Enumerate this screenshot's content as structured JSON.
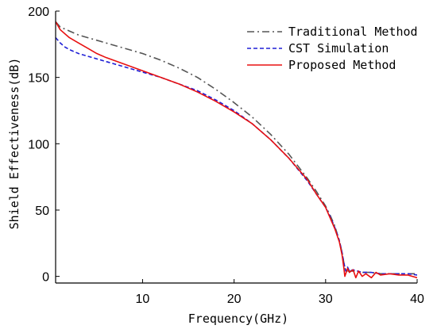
{
  "chart_data": {
    "type": "line",
    "title": "",
    "xlabel": "Frequency(GHz)",
    "ylabel": "Shield Effectiveness(dB)",
    "xlim": [
      0.5,
      40
    ],
    "ylim": [
      -5,
      200
    ],
    "xticks": [
      10,
      20,
      30,
      40
    ],
    "yticks": [
      0,
      50,
      100,
      150,
      200
    ],
    "grid": false,
    "legend_position": "top-right",
    "series": [
      {
        "name": "Traditional Method",
        "color": "#555555",
        "dash": "dashdot",
        "x": [
          0.5,
          1,
          2,
          3,
          4,
          5,
          6,
          8,
          10,
          12,
          14,
          16,
          18,
          20,
          22,
          24,
          26,
          28,
          29,
          30,
          30.5,
          31,
          31.5,
          31.8,
          32,
          32.2,
          32.5,
          33,
          34,
          35,
          36,
          37,
          38,
          39,
          40
        ],
        "values": [
          192,
          188,
          185,
          182,
          180,
          178,
          176,
          172,
          168,
          163,
          157,
          150,
          141,
          131,
          120,
          107,
          92,
          74,
          64,
          53,
          46,
          38,
          27,
          18,
          10,
          4,
          4,
          4,
          3,
          3,
          2,
          2,
          2,
          2,
          2
        ]
      },
      {
        "name": "CST Simulation",
        "color": "#1f1fd6",
        "dash": "dashed",
        "x": [
          0.5,
          1,
          1.5,
          2,
          3,
          4,
          5,
          6,
          8,
          10,
          12,
          14,
          16,
          18,
          20,
          22,
          24,
          26,
          28,
          29,
          30,
          30.5,
          31,
          31.5,
          31.8,
          32,
          32.2,
          32.4,
          32.6,
          33,
          34,
          35,
          36,
          37,
          38,
          39,
          40
        ],
        "values": [
          180,
          176,
          173,
          171,
          168,
          166,
          164,
          162,
          158,
          154,
          150,
          145,
          140,
          133,
          125,
          115,
          103,
          89,
          72,
          62,
          52,
          45,
          37,
          27,
          18,
          10,
          4,
          7,
          4,
          5,
          3,
          3,
          2,
          2,
          2,
          2,
          1
        ]
      },
      {
        "name": "Proposed Method",
        "color": "#e81010",
        "dash": "solid",
        "x": [
          0.5,
          1,
          2,
          3,
          4,
          5,
          6,
          8,
          10,
          12,
          14,
          16,
          18,
          20,
          22,
          24,
          26,
          28,
          29,
          30,
          30.5,
          31,
          31.5,
          31.8,
          32,
          32.1,
          32.2,
          32.4,
          32.6,
          33,
          33.3,
          33.6,
          34,
          34.4,
          35,
          35.5,
          36,
          37,
          38,
          39,
          40
        ],
        "values": [
          192,
          186,
          180,
          176,
          172,
          168,
          165,
          160,
          155,
          150,
          145,
          139,
          132,
          124,
          115,
          103,
          89,
          73,
          62,
          52,
          44,
          36,
          26,
          16,
          6,
          0,
          2,
          6,
          3,
          5,
          -1,
          4,
          0,
          2,
          -1,
          3,
          1,
          2,
          1,
          1,
          -1
        ]
      }
    ]
  }
}
